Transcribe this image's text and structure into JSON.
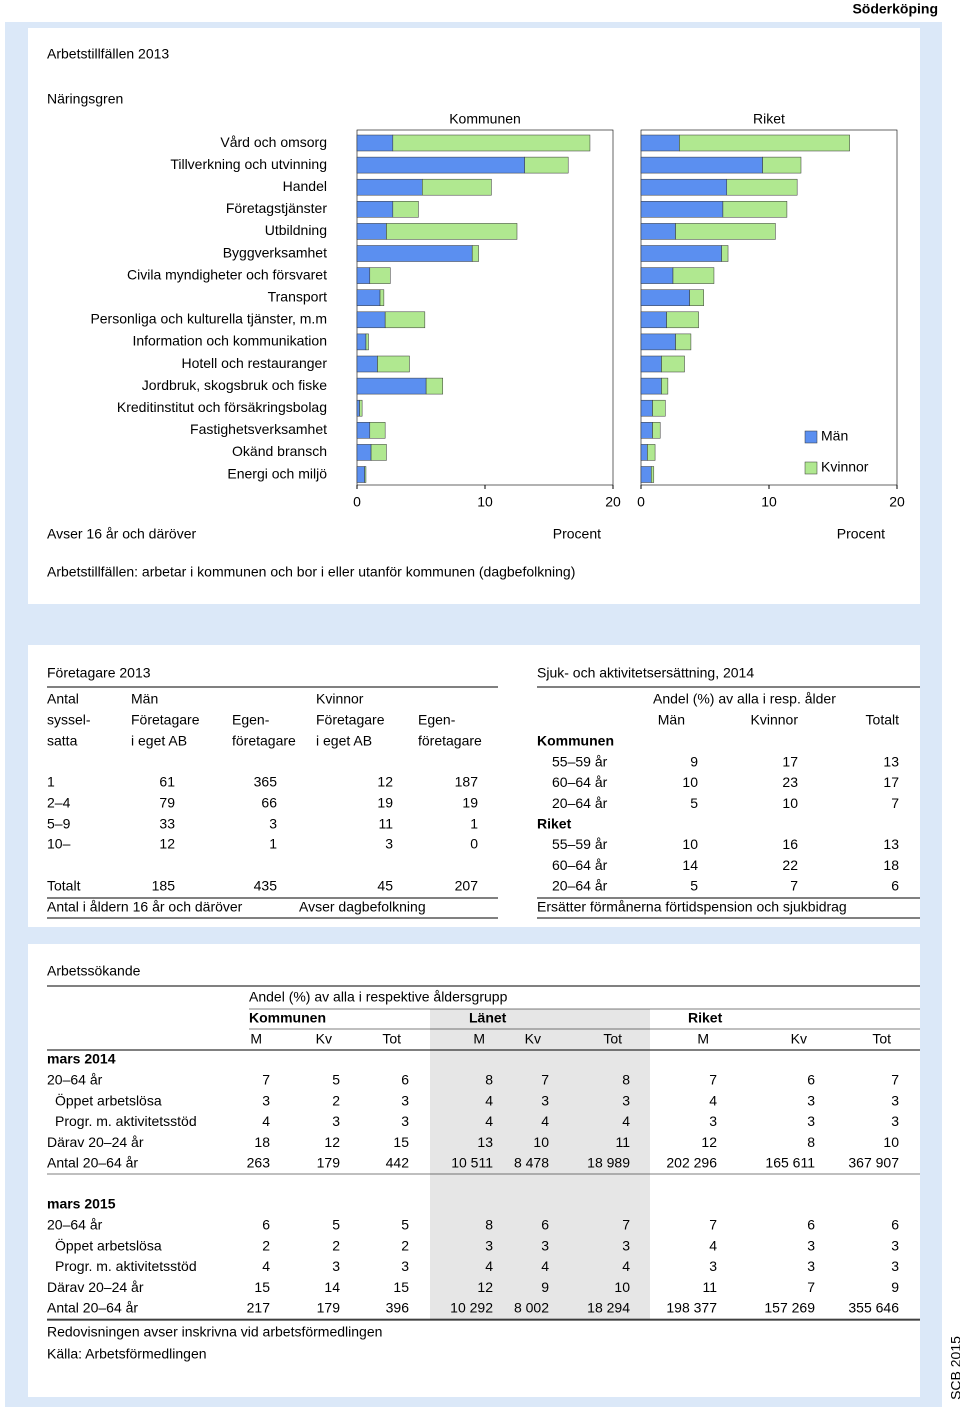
{
  "header": {
    "municipality": "Söderköping"
  },
  "chart_data": {
    "type": "bar",
    "orientation": "horizontal",
    "stacked": true,
    "title": "Arbetstillfällen 2013",
    "subtitle": "Näringsgren",
    "categories": [
      "Vård och omsorg",
      "Tillverkning och utvinning",
      "Handel",
      "Företagstjänster",
      "Utbildning",
      "Byggverksamhet",
      "Civila myndigheter och försvaret",
      "Transport",
      "Personliga och kulturella tjänster, m.m",
      "Information och kommunikation",
      "Hotell och restauranger",
      "Jordbruk, skogsbruk och fiske",
      "Kreditinstitut och försäkringsbolag",
      "Fastighetsverksamhet",
      "Okänd bransch",
      "Energi och miljö"
    ],
    "series": [
      {
        "name": "Män",
        "color": "#5b8ff0"
      },
      {
        "name": "Kvinnor",
        "color": "#b0e890"
      }
    ],
    "legend": "right",
    "panels": [
      {
        "title": "Kommunen",
        "xlim": [
          0,
          20
        ],
        "xticks": [
          0,
          10,
          20
        ],
        "xlabel": "Procent",
        "values": [
          [
            2.8,
            13.1,
            5.1,
            2.8,
            2.3,
            9.0,
            1.0,
            1.8,
            2.2,
            0.7,
            1.6,
            5.4,
            0.2,
            1.0,
            1.1,
            0.6
          ],
          [
            15.4,
            3.4,
            5.4,
            2.0,
            10.2,
            0.5,
            1.6,
            0.3,
            3.1,
            0.2,
            2.5,
            1.3,
            0.2,
            1.2,
            1.2,
            0.1
          ]
        ]
      },
      {
        "title": "Riket",
        "xlim": [
          0,
          20
        ],
        "xticks": [
          0,
          10,
          20
        ],
        "xlabel": "Procent",
        "values": [
          [
            3.0,
            9.5,
            6.7,
            6.4,
            2.7,
            6.3,
            2.5,
            3.8,
            2.0,
            2.7,
            1.6,
            1.6,
            0.9,
            0.9,
            0.5,
            0.8
          ],
          [
            13.3,
            3.0,
            5.5,
            5.0,
            7.8,
            0.5,
            3.2,
            1.1,
            2.5,
            1.2,
            1.8,
            0.5,
            1.0,
            0.6,
            0.6,
            0.2
          ]
        ]
      }
    ],
    "note": "Avser 16 år och däröver",
    "footnote": "Arbetstillfällen: arbetar i kommunen och bor i eller utanför kommunen (dagbefolkning)"
  },
  "foretagare": {
    "title": "Företagare 2013",
    "group_labels": [
      "Antal",
      "Män",
      "Kvinnor"
    ],
    "column_labels": [
      [
        "syssel-",
        "satta"
      ],
      [
        "Företagare",
        "i eget AB"
      ],
      [
        "Egen-",
        "företagare"
      ],
      [
        "Företagare",
        "i eget AB"
      ],
      [
        "Egen-",
        "företagare"
      ]
    ],
    "rows": [
      [
        "1",
        61,
        365,
        12,
        187
      ],
      [
        "2–4",
        79,
        66,
        19,
        19
      ],
      [
        "5–9",
        33,
        3,
        11,
        1
      ],
      [
        "10–",
        12,
        1,
        3,
        0
      ],
      [
        "Totalt",
        185,
        435,
        45,
        207
      ]
    ],
    "notes": [
      "Antal i åldern 16 år och däröver",
      "Avser dagbefolkning"
    ]
  },
  "sjuk": {
    "title": "Sjuk- och aktivitetsersättning, 2014",
    "subtitle": "Andel (%) av alla i resp. ålder",
    "columns": [
      "Män",
      "Kvinnor",
      "Totalt"
    ],
    "groups": [
      {
        "name": "Kommunen",
        "rows": [
          {
            "label": "55–59 år",
            "values": [
              9,
              17,
              13
            ]
          },
          {
            "label": "60–64 år",
            "values": [
              10,
              23,
              17
            ]
          },
          {
            "label": "20–64 år",
            "values": [
              5,
              10,
              7
            ]
          }
        ]
      },
      {
        "name": "Riket",
        "rows": [
          {
            "label": "55–59 år",
            "values": [
              10,
              16,
              13
            ]
          },
          {
            "label": "60–64 år",
            "values": [
              14,
              22,
              18
            ]
          },
          {
            "label": "20–64 år",
            "values": [
              5,
              7,
              6
            ]
          }
        ]
      }
    ],
    "note": "Ersätter förmånerna förtidspension och sjukbidrag"
  },
  "arbetssokande": {
    "title": "Arbetssökande",
    "subtitle": "Andel (%) av alla i respektive åldersgrupp",
    "regions": [
      "Kommunen",
      "Länet",
      "Riket"
    ],
    "columns": [
      "M",
      "Kv",
      "Tot"
    ],
    "periods": [
      {
        "label": "mars 2014",
        "rows": [
          {
            "label": "20–64 år",
            "values": [
              7,
              5,
              6,
              8,
              7,
              8,
              7,
              6,
              7
            ]
          },
          {
            "label": "Öppet arbetslösa",
            "values": [
              3,
              2,
              3,
              4,
              3,
              3,
              4,
              3,
              3
            ]
          },
          {
            "label": "Progr. m. aktivitetsstöd",
            "values": [
              4,
              3,
              3,
              4,
              4,
              4,
              3,
              3,
              3
            ]
          },
          {
            "label": "Därav 20–24 år",
            "values": [
              18,
              12,
              15,
              13,
              10,
              11,
              12,
              8,
              10
            ]
          },
          {
            "label": "Antal 20–64 år",
            "values": [
              "263",
              "179",
              "442",
              "10 511",
              "8 478",
              "18 989",
              "202 296",
              "165 611",
              "367 907"
            ]
          }
        ]
      },
      {
        "label": "mars 2015",
        "rows": [
          {
            "label": "20–64 år",
            "values": [
              6,
              5,
              5,
              8,
              6,
              7,
              7,
              6,
              6
            ]
          },
          {
            "label": "Öppet arbetslösa",
            "values": [
              2,
              2,
              2,
              3,
              3,
              3,
              4,
              3,
              3
            ]
          },
          {
            "label": "Progr. m. aktivitetsstöd",
            "values": [
              4,
              3,
              3,
              4,
              4,
              4,
              3,
              3,
              3
            ]
          },
          {
            "label": "Därav 20–24 år",
            "values": [
              15,
              14,
              15,
              12,
              9,
              10,
              11,
              7,
              9
            ]
          },
          {
            "label": "Antal 20–64 år",
            "values": [
              "217",
              "179",
              "396",
              "10 292",
              "8 002",
              "18 294",
              "198 377",
              "157 269",
              "355 646"
            ]
          }
        ]
      }
    ],
    "note": "Redovisningen avser inskrivna vid arbetsförmedlingen",
    "source": "Källa: Arbetsförmedlingen"
  },
  "footer": {
    "publisher": "SCB 2015"
  }
}
